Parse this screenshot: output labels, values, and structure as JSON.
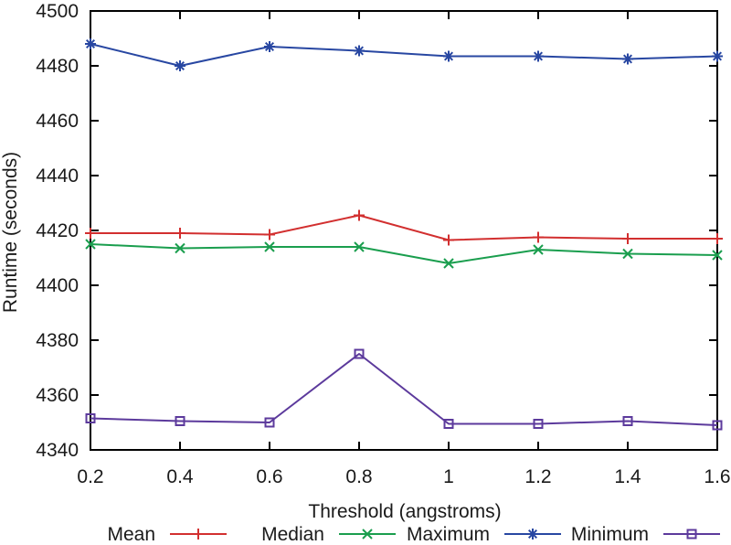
{
  "page": {
    "background": "#ffffff",
    "frame_color": "#000000",
    "text_color": "#1a1a1a"
  },
  "chart_data": {
    "type": "line",
    "title": "",
    "xlabel": "Threshold (angstroms)",
    "ylabel": "Runtime (seconds)",
    "x": [
      0.2,
      0.4,
      0.6,
      0.8,
      1,
      1.2,
      1.4,
      1.6
    ],
    "xtick_labels": [
      "0.2",
      "0.4",
      "0.6",
      "0.8",
      "1",
      "1.2",
      "1.4",
      "1.6"
    ],
    "yticks": [
      4340,
      4360,
      4380,
      4400,
      4420,
      4440,
      4460,
      4480,
      4500
    ],
    "ytick_labels": [
      "4340",
      "4360",
      "4380",
      "4400",
      "4420",
      "4440",
      "4460",
      "4480",
      "4500"
    ],
    "xlim": [
      0.2,
      1.6
    ],
    "ylim": [
      4340,
      4500
    ],
    "grid": false,
    "legend_position": "bottom",
    "series": [
      {
        "name": "Mean",
        "color": "#d22f2f",
        "marker": "plus",
        "values": [
          4419,
          4419,
          4418.5,
          4425.5,
          4416.5,
          4417.5,
          4417,
          4417
        ]
      },
      {
        "name": "Median",
        "color": "#1a9e4e",
        "marker": "x",
        "values": [
          4415,
          4413.5,
          4414,
          4414,
          4408,
          4413,
          4411.5,
          4411
        ]
      },
      {
        "name": "Maximum",
        "color": "#2847a2",
        "marker": "asterisk",
        "values": [
          4488,
          4480,
          4487,
          4485.5,
          4483.5,
          4483.5,
          4482.5,
          4483.5
        ]
      },
      {
        "name": "Minimum",
        "color": "#5c3a9c",
        "marker": "square",
        "values": [
          4351.5,
          4350.5,
          4350,
          4375,
          4349.5,
          4349.5,
          4350.5,
          4349
        ]
      }
    ]
  }
}
